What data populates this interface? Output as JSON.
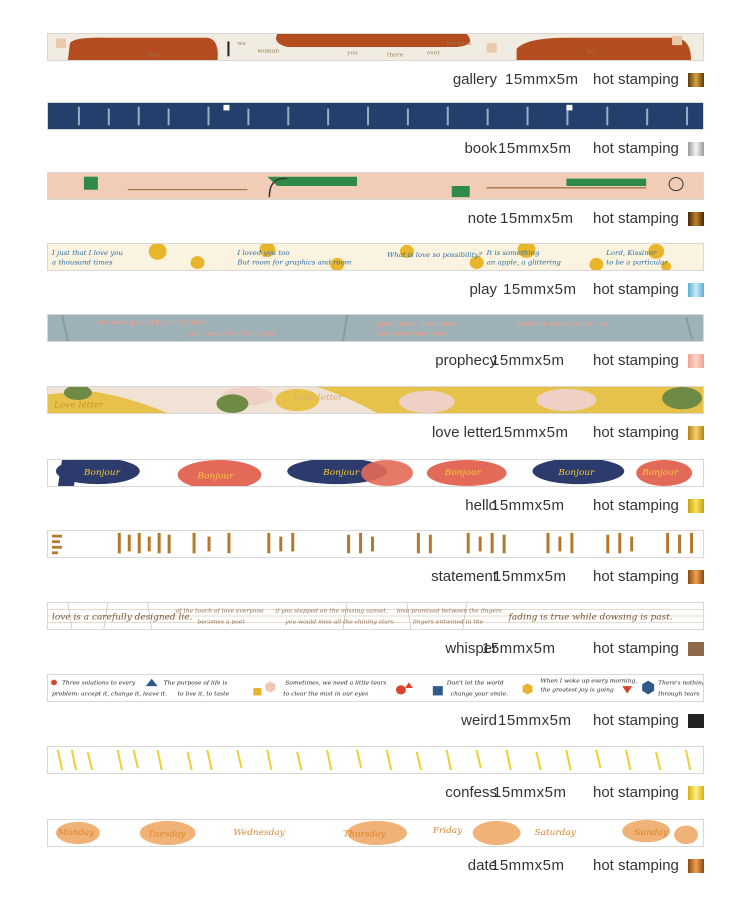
{
  "products": [
    {
      "name": "gallery",
      "size": "15mmx5m",
      "finish": "hot stamping",
      "swatch": "#8a5a14",
      "size_left": 505
    },
    {
      "name": "book",
      "size": "15mmx5m",
      "finish": "hot stamping",
      "swatch": "#c8c8c8",
      "size_left": 498
    },
    {
      "name": "note",
      "size": "15mmx5m",
      "finish": "hot stamping",
      "swatch": "#7a4a10",
      "size_left": 500
    },
    {
      "name": "play",
      "size": "15mmx5m",
      "finish": "hot stamping",
      "swatch": "#7cc7e0",
      "size_left": 503
    },
    {
      "name": "prophecy",
      "size": "15mmx5m",
      "finish": "hot stamping",
      "swatch": "#f2a08e",
      "size_left": 491
    },
    {
      "name": "love letter",
      "size": "15mmx5m",
      "finish": "hot stamping",
      "swatch": "#d9a323",
      "size_left": 495
    },
    {
      "name": "hello",
      "size": "15mmx5m",
      "finish": "hot stamping",
      "swatch": "#e8c21c",
      "size_left": 491
    },
    {
      "name": "statement",
      "size": "15mmx5m",
      "finish": "hot stamping",
      "swatch": "#c9701c",
      "size_left": 493
    },
    {
      "name": "whisper",
      "size": "15mmx5m",
      "finish": "hot stamping",
      "swatch": "#8f6a48",
      "size_left": 482
    },
    {
      "name": "weird",
      "size": "15mmx5m",
      "finish": "hot stamping",
      "swatch": "#222222",
      "size_left": 498
    },
    {
      "name": "confess",
      "size": "15mmx5m",
      "finish": "hot stamping",
      "swatch": "#f0cf2e",
      "size_left": 493
    },
    {
      "name": "date",
      "size": "15mmx5m",
      "finish": "hot stamping",
      "swatch": "#c77018",
      "size_left": 491
    }
  ],
  "tape_text": {
    "hello": "Bonjour",
    "love_letter": "Love letter",
    "whisper_1": "love is a carefully designed lie.",
    "whisper_2": "fading is true while dowsing is past.",
    "days": [
      "Monday",
      "Tuesday",
      "Wednesday",
      "Thursday",
      "Friday",
      "Saturday",
      "Sunday"
    ],
    "prophecy_1": "we were guided by our intuition:",
    "prophecy_2": "you sweat meoff my fest.",
    "prophecy_3": "good times, hard times,",
    "prophecy_4": "but never bad times",
    "prophecy_5": "and here we are right now",
    "weird_1": "Three solutions to every problem: accept it, change it, leave it.",
    "weird_2": "The purpose of life is to live it, to taste",
    "weird_3": "Sometimes, we need a little tears to clear the mist in our eyes",
    "weird_4": "Don't let the world change your smile."
  }
}
